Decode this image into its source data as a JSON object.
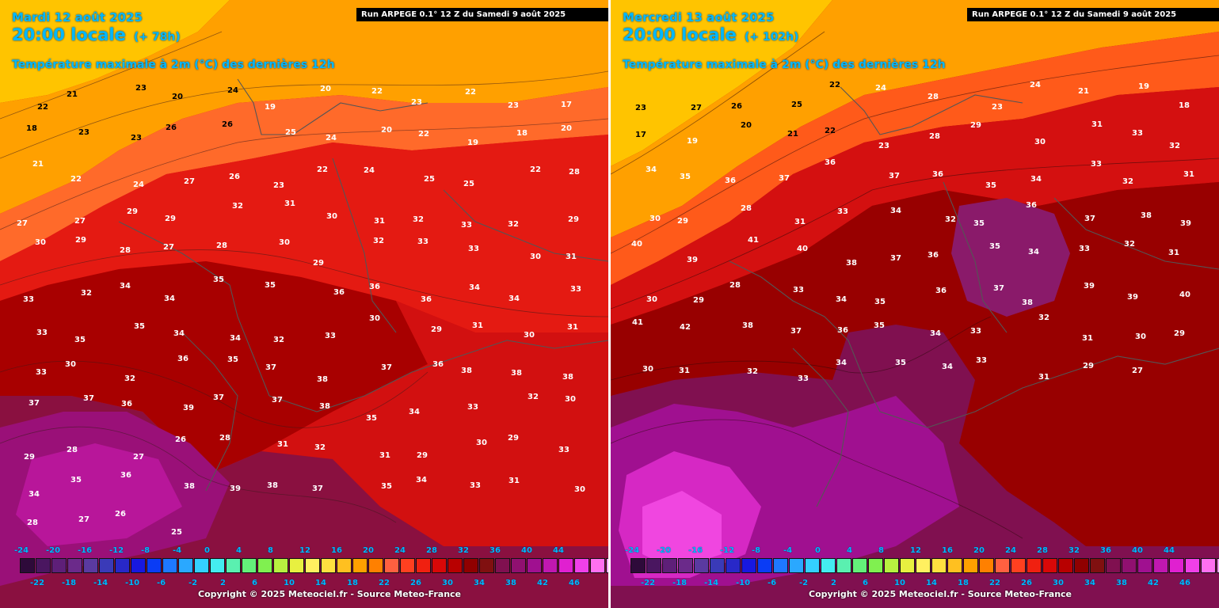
{
  "panels": [
    {
      "date": "Mardi 12 août 2025",
      "time": "20:00 locale",
      "lead": "(+ 78h)",
      "parameter": "Température maximale à 2m (°C) des dernières 12h",
      "run": "Run ARPEGE 0.1° 12 Z du Samedi 9 août 2025",
      "copyright": "Copyright © 2025 Meteociel.fr - Source Meteo-France"
    },
    {
      "date": "Mercredi 13 août 2025",
      "time": "20:00 locale",
      "lead": "(+ 102h)",
      "parameter": "Température maximale à 2m (°C) des dernières 12h",
      "run": "Run ARPEGE 0.1° 12 Z du Samedi 9 août 2025",
      "copyright": "Copyright © 2025 Meteociel.fr - Source Meteo-France"
    }
  ],
  "legend": {
    "colors": [
      "#2e0a3a",
      "#4a1660",
      "#5e1f78",
      "#6b2a8a",
      "#5a3aa0",
      "#3a3ab8",
      "#2828c8",
      "#1818e0",
      "#0a3cf5",
      "#1e78ff",
      "#2aa8ff",
      "#34d0ff",
      "#44ecf0",
      "#5af0b0",
      "#64f07a",
      "#80f050",
      "#b8f040",
      "#e8f040",
      "#fff060",
      "#ffe040",
      "#ffc020",
      "#ffa000",
      "#ff8000",
      "#ff6040",
      "#ff4020",
      "#f02010",
      "#d80808",
      "#b80000",
      "#900000",
      "#801010",
      "#801050",
      "#901070",
      "#a01090",
      "#c018b0",
      "#e020d0",
      "#f040e8",
      "#ff70f0",
      "#ffa0f8"
    ],
    "ticks_top": [
      "-24",
      "-20",
      "-16",
      "-12",
      "-8",
      "-4",
      "0",
      "4",
      "8",
      "12",
      "16",
      "20",
      "24",
      "28",
      "32",
      "36",
      "40",
      "44"
    ],
    "ticks_bottom": [
      "-22",
      "-18",
      "-14",
      "-10",
      "-6",
      "-2",
      "2",
      "6",
      "10",
      "14",
      "18",
      "22",
      "26",
      "30",
      "34",
      "38",
      "42",
      "46"
    ]
  },
  "left_labels": [
    "22",
    "21",
    "23",
    "20",
    "24",
    "19",
    "20",
    "22",
    "23",
    "22",
    "23",
    "17",
    "18",
    "23",
    "23",
    "26",
    "26",
    "25",
    "24",
    "20",
    "22",
    "19",
    "18",
    "20",
    "21",
    "22",
    "24",
    "27",
    "26",
    "23",
    "22",
    "24",
    "25",
    "25",
    "22",
    "28",
    "27",
    "27",
    "29",
    "29",
    "32",
    "31",
    "30",
    "31",
    "32",
    "33",
    "32",
    "29",
    "30",
    "29",
    "28",
    "27",
    "28",
    "30",
    "29",
    "32",
    "33",
    "33",
    "30",
    "31",
    "33",
    "32",
    "34",
    "34",
    "35",
    "35",
    "36",
    "36",
    "36",
    "34",
    "34",
    "33",
    "33",
    "35",
    "35",
    "34",
    "34",
    "32",
    "33",
    "30",
    "29",
    "31",
    "30",
    "31",
    "33",
    "30",
    "32",
    "36",
    "35",
    "37",
    "38",
    "37",
    "36",
    "38",
    "38",
    "38",
    "37",
    "37",
    "36",
    "39",
    "37",
    "37",
    "38",
    "35",
    "34",
    "33",
    "32",
    "30",
    "29",
    "28",
    "27",
    "26",
    "28",
    "31",
    "32",
    "31",
    "29",
    "30",
    "29",
    "33",
    "34",
    "35",
    "36",
    "38",
    "39",
    "38",
    "37",
    "35",
    "34",
    "33",
    "31",
    "30",
    "28",
    "27",
    "26",
    "25"
  ],
  "right_labels": [
    "23",
    "27",
    "26",
    "25",
    "22",
    "24",
    "28",
    "23",
    "24",
    "21",
    "19",
    "18",
    "17",
    "19",
    "20",
    "21",
    "22",
    "23",
    "28",
    "29",
    "30",
    "31",
    "33",
    "32",
    "34",
    "35",
    "36",
    "37",
    "36",
    "37",
    "36",
    "35",
    "34",
    "33",
    "32",
    "31",
    "30",
    "29",
    "28",
    "31",
    "33",
    "34",
    "32",
    "35",
    "36",
    "37",
    "38",
    "39",
    "40",
    "39",
    "41",
    "40",
    "38",
    "37",
    "36",
    "35",
    "34",
    "33",
    "32",
    "31",
    "30",
    "29",
    "28",
    "33",
    "34",
    "35",
    "36",
    "37",
    "38",
    "39",
    "39",
    "40",
    "41",
    "42",
    "38",
    "37",
    "36",
    "35",
    "34",
    "33",
    "32",
    "31",
    "30",
    "29",
    "30",
    "31",
    "32",
    "33",
    "34",
    "35",
    "34",
    "33",
    "31",
    "29",
    "27"
  ]
}
